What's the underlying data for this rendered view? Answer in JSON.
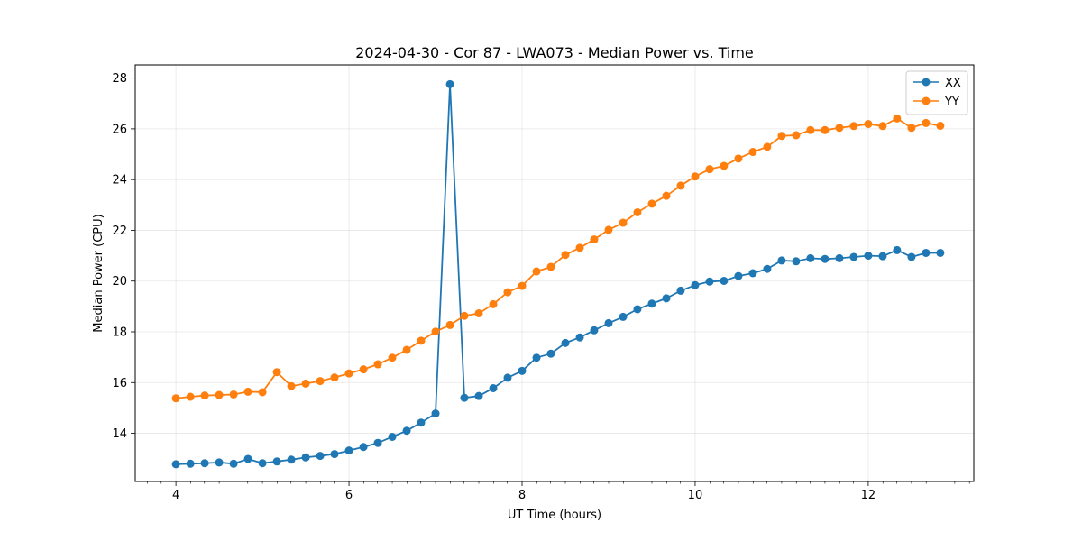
{
  "chart_data": {
    "type": "line",
    "title": "2024-04-30 - Cor 87 - LWA073 - Median Power vs. Time",
    "xlabel": "UT Time (hours)",
    "ylabel": "Median Power (CPU)",
    "xlim": [
      3.53,
      13.22
    ],
    "ylim": [
      12.1,
      28.52
    ],
    "xticks": [
      4,
      6,
      8,
      10,
      12
    ],
    "xticks_minor": [
      3.67,
      3.83,
      4.17,
      4.33,
      4.5,
      4.67,
      4.83,
      5,
      5.17,
      5.33,
      5.5,
      5.67,
      5.83,
      6.17,
      6.33,
      6.5,
      6.67,
      6.83,
      7,
      7.17,
      7.33,
      7.5,
      7.67,
      7.83,
      8.17,
      8.33,
      8.5,
      8.67,
      8.83,
      9,
      9.17,
      9.33,
      9.5,
      9.67,
      9.83,
      10.17,
      10.33,
      10.5,
      10.67,
      10.83,
      11,
      11.17,
      11.33,
      11.5,
      11.67,
      11.83,
      12.17,
      12.33,
      12.5,
      12.67,
      12.83,
      13,
      13.17
    ],
    "yticks": [
      14,
      16,
      18,
      20,
      22,
      24,
      26,
      28
    ],
    "grid": true,
    "legend_position": "top-right",
    "x": [
      4.0,
      4.167,
      4.333,
      4.5,
      4.667,
      4.833,
      5.0,
      5.167,
      5.333,
      5.5,
      5.667,
      5.833,
      6.0,
      6.167,
      6.333,
      6.5,
      6.667,
      6.833,
      7.0,
      7.167,
      7.333,
      7.5,
      7.667,
      7.833,
      8.0,
      8.167,
      8.333,
      8.5,
      8.667,
      8.833,
      9.0,
      9.167,
      9.333,
      9.5,
      9.667,
      9.833,
      10.0,
      10.167,
      10.333,
      10.5,
      10.667,
      10.833,
      11.0,
      11.167,
      11.333,
      11.5,
      11.667,
      11.833,
      12.0,
      12.167,
      12.333,
      12.5,
      12.667,
      12.833
    ],
    "series": [
      {
        "name": "XX",
        "color": "#1f77b4",
        "values": [
          12.78,
          12.8,
          12.82,
          12.85,
          12.8,
          12.99,
          12.82,
          12.89,
          12.96,
          13.05,
          13.11,
          13.18,
          13.32,
          13.46,
          13.62,
          13.86,
          14.1,
          14.42,
          14.78,
          27.76,
          15.4,
          15.47,
          15.78,
          16.19,
          16.46,
          16.98,
          17.14,
          17.56,
          17.78,
          18.06,
          18.34,
          18.59,
          18.89,
          19.11,
          19.32,
          19.62,
          19.84,
          19.98,
          20.01,
          20.2,
          20.31,
          20.48,
          20.81,
          20.78,
          20.9,
          20.87,
          20.9,
          20.95,
          21.0,
          20.98,
          21.22,
          20.95,
          21.11,
          21.11
        ]
      },
      {
        "name": "YY",
        "color": "#ff7f0e",
        "values": [
          15.38,
          15.44,
          15.49,
          15.51,
          15.53,
          15.64,
          15.62,
          16.41,
          15.86,
          15.96,
          16.06,
          16.2,
          16.36,
          16.52,
          16.72,
          16.98,
          17.29,
          17.65,
          18.01,
          18.27,
          18.63,
          18.73,
          19.09,
          19.56,
          19.81,
          20.38,
          20.56,
          21.03,
          21.31,
          21.64,
          22.02,
          22.3,
          22.71,
          23.05,
          23.36,
          23.76,
          24.12,
          24.41,
          24.54,
          24.83,
          25.09,
          25.29,
          25.72,
          25.75,
          25.95,
          25.95,
          26.04,
          26.11,
          26.19,
          26.11,
          26.41,
          26.04,
          26.23,
          26.12
        ]
      }
    ]
  }
}
